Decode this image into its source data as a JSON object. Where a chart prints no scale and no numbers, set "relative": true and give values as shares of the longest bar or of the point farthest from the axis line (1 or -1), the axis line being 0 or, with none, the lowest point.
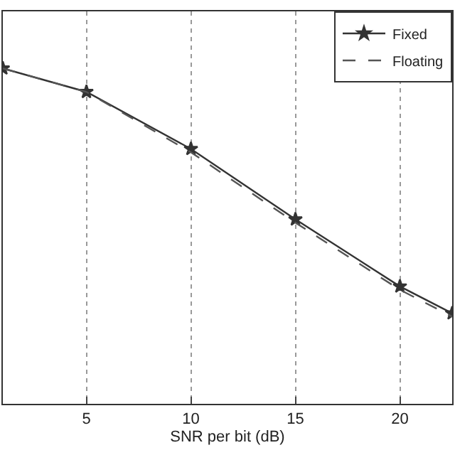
{
  "chart_data": {
    "type": "line",
    "xlabel": "SNR per bit (dB)",
    "relative": true,
    "xlim": [
      1,
      22.5
    ],
    "xticks": [
      5,
      10,
      15,
      20
    ],
    "x": [
      1,
      5,
      10,
      15,
      20,
      22.5
    ],
    "series": [
      {
        "name": "Fixed",
        "color": "#333333",
        "values": [
          1,
          0.93,
          0.76,
          0.55,
          0.35,
          0.27
        ],
        "marker": "star",
        "line_style": "solid"
      },
      {
        "name": "Floating",
        "color": "#555555",
        "values": [
          1,
          0.93,
          0.75,
          0.54,
          0.34,
          0.26
        ],
        "marker": "none",
        "line_style": "dashed"
      }
    ],
    "grid": "x",
    "legend": "top right"
  }
}
